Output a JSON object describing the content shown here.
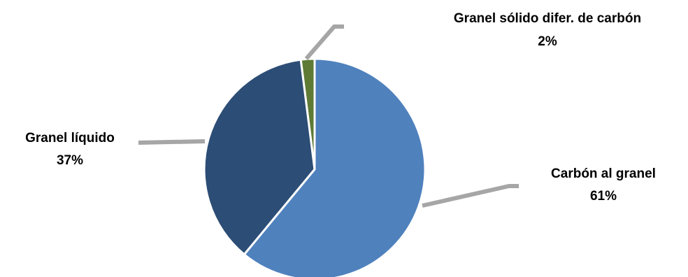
{
  "chart_data": {
    "type": "pie",
    "title": "",
    "slices": [
      {
        "label": "Carbón al granel",
        "value": 61,
        "value_label": "61%",
        "color": "#4f81bd"
      },
      {
        "label": "Granel líquido",
        "value": 37,
        "value_label": "37%",
        "color": "#2c4d75"
      },
      {
        "label": "Granel sólido difer. de carbón",
        "value": 2,
        "value_label": "2%",
        "color": "#5e7a35"
      }
    ],
    "leader_line_color": "#a6a6a6",
    "slice_border_color": "#ffffff"
  }
}
